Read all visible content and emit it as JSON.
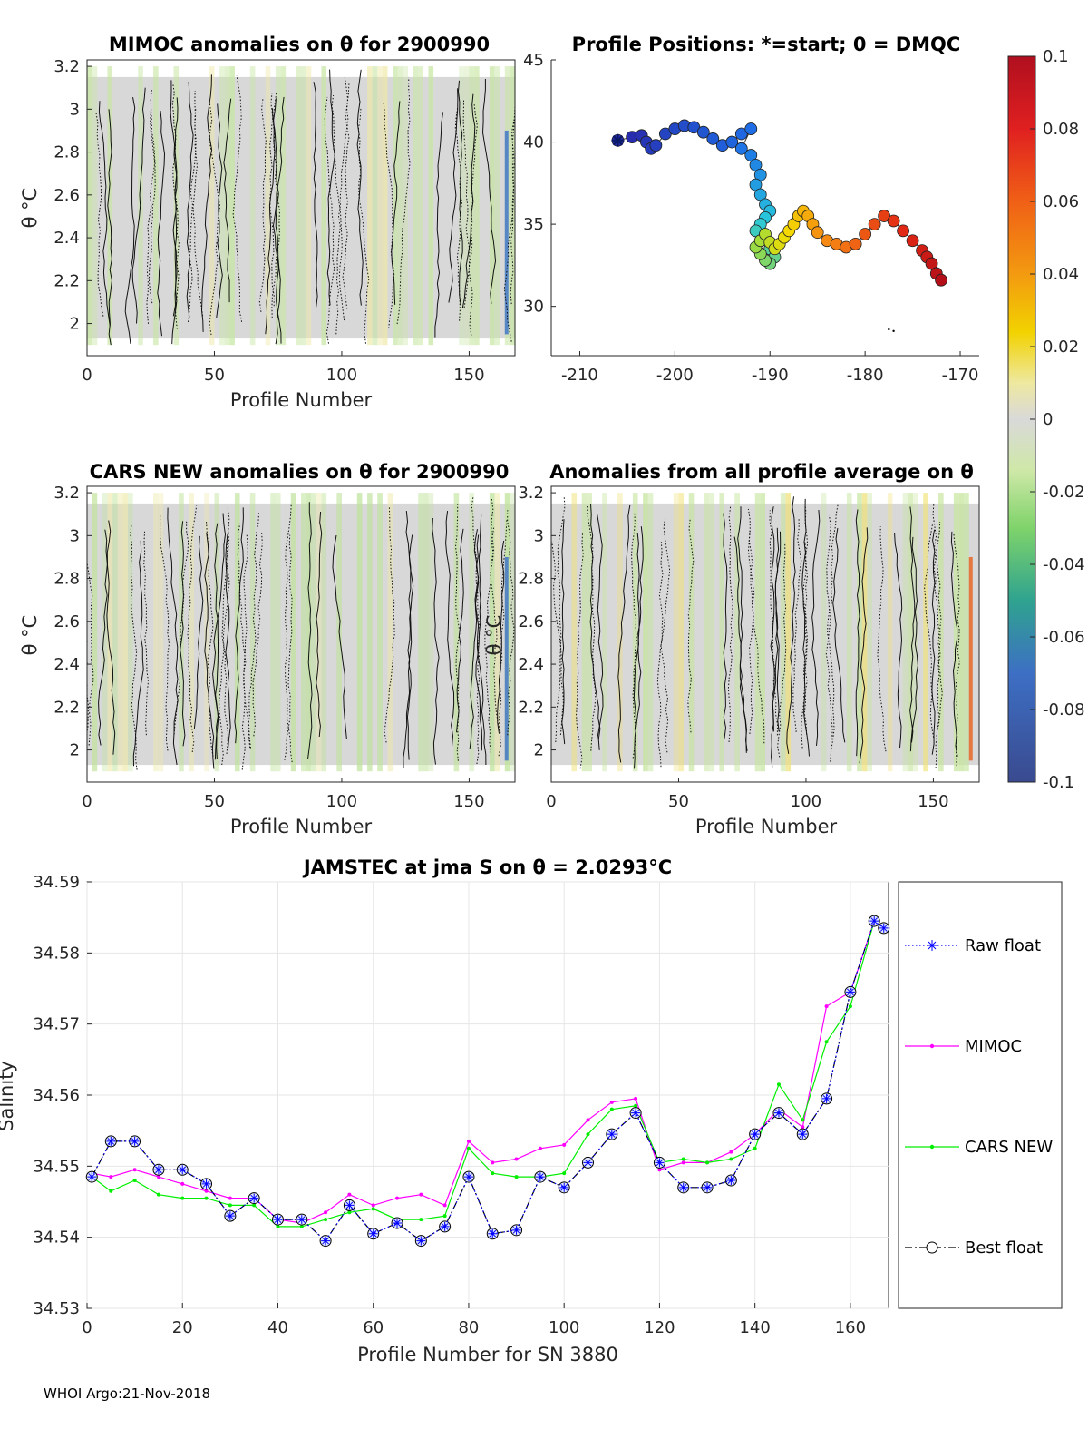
{
  "footer": "WHOI Argo:21-Nov-2018",
  "colorbar": {
    "ticks": [
      "0.1",
      "0.08",
      "0.06",
      "0.04",
      "0.02",
      "0",
      "-0.02",
      "-0.04",
      "-0.06",
      "-0.08",
      "-0.1"
    ],
    "colors": [
      "#c8102e",
      "#e8401e",
      "#f07a12",
      "#f4b400",
      "#f2e46a",
      "#d9d9d9",
      "#c9e8a0",
      "#5fcf6e",
      "#2aa88a",
      "#3a6fc7",
      "#3a4a9a"
    ]
  },
  "chart_data": [
    {
      "id": "mimoc",
      "type": "heatmap",
      "title": "MIMOC anomalies on θ  for 2900990",
      "xlabel": "Profile Number",
      "ylabel": "θ °C",
      "xlim": [
        0,
        168
      ],
      "ylim": [
        1.85,
        3.23
      ],
      "xticks": [
        "0",
        "50",
        "100",
        "150"
      ],
      "yticks": [
        "2",
        "2.2",
        "2.4",
        "2.6",
        "2.8",
        "3",
        "3.2"
      ]
    },
    {
      "id": "positions",
      "type": "scatter",
      "title": "Profile Positions: *=start; 0 = DMQC",
      "xlim": [
        -213,
        -168
      ],
      "ylim": [
        27,
        45
      ],
      "xticks": [
        "-210",
        "-200",
        "-190",
        "-180",
        "-170"
      ],
      "yticks": [
        "30",
        "35",
        "40",
        "45"
      ],
      "lon": [
        -206,
        -204.5,
        -203.5,
        -203,
        -202.5,
        -202,
        -201,
        -200,
        -199,
        -198,
        -197,
        -196,
        -195,
        -194,
        -193,
        -192,
        -193,
        -192,
        -191.5,
        -191,
        -191.5,
        -191,
        -190.5,
        -190,
        -190.5,
        -191,
        -191.5,
        -191,
        -190,
        -189.5,
        -190,
        -190.5,
        -191,
        -191.5,
        -191,
        -190.5,
        -190,
        -189.5,
        -189,
        -188.5,
        -188,
        -187.5,
        -187,
        -186.5,
        -186,
        -185.5,
        -185,
        -184,
        -183,
        -182,
        -181,
        -180,
        -179,
        -178,
        -177,
        -176,
        -175,
        -174,
        -173.5,
        -173,
        -172.5,
        -172
      ],
      "lat": [
        40.1,
        40.3,
        40.4,
        40.0,
        39.6,
        39.8,
        40.5,
        40.8,
        41.0,
        40.9,
        40.6,
        40.2,
        39.8,
        40.0,
        40.5,
        40.8,
        39.6,
        39.2,
        38.6,
        38.0,
        37.4,
        36.8,
        36.2,
        35.8,
        35.4,
        35.0,
        34.6,
        34.0,
        33.5,
        33.0,
        32.6,
        32.8,
        33.2,
        33.6,
        34.0,
        34.4,
        33.9,
        33.5,
        33.8,
        34.2,
        34.6,
        35.0,
        35.5,
        35.8,
        35.5,
        35.0,
        34.5,
        34.0,
        33.8,
        33.6,
        33.8,
        34.4,
        35.0,
        35.5,
        35.2,
        34.6,
        34.0,
        33.4,
        33.0,
        32.6,
        32.0,
        31.6
      ],
      "markers": [
        [
          -177.5,
          28.6
        ],
        [
          -177.0,
          28.5
        ]
      ]
    },
    {
      "id": "cars",
      "type": "heatmap",
      "title": "CARS NEW anomalies on θ for 2900990",
      "xlabel": "Profile Number",
      "ylabel": "θ °C",
      "xlim": [
        0,
        168
      ],
      "ylim": [
        1.85,
        3.23
      ],
      "xticks": [
        "0",
        "50",
        "100",
        "150"
      ],
      "yticks": [
        "2",
        "2.2",
        "2.4",
        "2.6",
        "2.8",
        "3",
        "3.2"
      ]
    },
    {
      "id": "allavg",
      "type": "heatmap",
      "title": "Anomalies from all profile average on θ",
      "xlabel": "Profile Number",
      "ylabel": "θ °C",
      "xlim": [
        0,
        168
      ],
      "ylim": [
        1.85,
        3.23
      ],
      "xticks": [
        "0",
        "50",
        "100",
        "150"
      ],
      "yticks": [
        "2",
        "2.2",
        "2.4",
        "2.6",
        "2.8",
        "3",
        "3.2"
      ]
    },
    {
      "id": "salinity",
      "type": "line",
      "title": "JAMSTEC at jma S on θ = 2.0293°C",
      "xlabel": "Profile Number for SN 3880",
      "ylabel": "Salinity",
      "xlim": [
        0,
        168
      ],
      "ylim": [
        34.53,
        34.59
      ],
      "xticks": [
        "0",
        "20",
        "40",
        "60",
        "80",
        "100",
        "120",
        "140",
        "160"
      ],
      "yticks": [
        "34.53",
        "34.54",
        "34.55",
        "34.56",
        "34.57",
        "34.58",
        "34.59"
      ],
      "grid": true,
      "legend": "right",
      "x": [
        1,
        5,
        10,
        15,
        20,
        25,
        30,
        35,
        40,
        45,
        50,
        55,
        60,
        65,
        70,
        75,
        80,
        85,
        90,
        95,
        100,
        105,
        110,
        115,
        120,
        125,
        130,
        135,
        140,
        145,
        150,
        155,
        160,
        165,
        167
      ],
      "series": [
        {
          "name": "Raw float",
          "color": "#0000ff",
          "style": "dotted-star",
          "values": [
            34.5485,
            34.5535,
            34.5535,
            34.5495,
            34.5495,
            34.5475,
            34.543,
            34.5455,
            34.5425,
            34.5425,
            34.5395,
            34.5445,
            34.5405,
            34.542,
            34.5395,
            34.5415,
            34.5485,
            34.5405,
            34.541,
            34.5485,
            34.547,
            34.5505,
            34.5545,
            34.5575,
            34.5505,
            34.547,
            34.547,
            34.548,
            34.5545,
            34.5575,
            34.5545,
            34.5595,
            34.5745,
            34.5845,
            34.5835
          ]
        },
        {
          "name": "MIMOC",
          "color": "#ff00ff",
          "style": "dot-line",
          "values": [
            34.549,
            34.5485,
            34.5495,
            34.5485,
            34.5475,
            34.5465,
            34.5455,
            34.5455,
            34.5425,
            34.542,
            34.5435,
            34.546,
            34.5445,
            34.5455,
            34.546,
            34.5445,
            34.5535,
            34.5505,
            34.551,
            34.5525,
            34.553,
            34.5565,
            34.559,
            34.5595,
            34.5495,
            34.5505,
            34.5505,
            34.552,
            34.5545,
            34.558,
            34.5555,
            34.5725,
            34.5745,
            34.5845,
            34.5835
          ]
        },
        {
          "name": "CARS NEW",
          "color": "#00ee00",
          "style": "dot-line",
          "values": [
            34.5485,
            34.5465,
            34.548,
            34.546,
            34.5455,
            34.5455,
            34.5445,
            34.5445,
            34.5415,
            34.5415,
            34.5425,
            34.5435,
            34.544,
            34.5425,
            34.5425,
            34.543,
            34.5525,
            34.549,
            34.5485,
            34.5485,
            34.549,
            34.5545,
            34.558,
            34.5585,
            34.5505,
            34.551,
            34.5505,
            34.551,
            34.5525,
            34.5615,
            34.5565,
            34.5675,
            34.5725,
            34.5845,
            34.5835
          ]
        },
        {
          "name": "Best float",
          "color": "#000000",
          "style": "dashdot-circle",
          "values": [
            34.5485,
            34.5535,
            34.5535,
            34.5495,
            34.5495,
            34.5475,
            34.543,
            34.5455,
            34.5425,
            34.5425,
            34.5395,
            34.5445,
            34.5405,
            34.542,
            34.5395,
            34.5415,
            34.5485,
            34.5405,
            34.541,
            34.5485,
            34.547,
            34.5505,
            34.5545,
            34.5575,
            34.5505,
            34.547,
            34.547,
            34.548,
            34.5545,
            34.5575,
            34.5545,
            34.5595,
            34.5745,
            34.5845,
            34.5835
          ]
        }
      ]
    }
  ]
}
